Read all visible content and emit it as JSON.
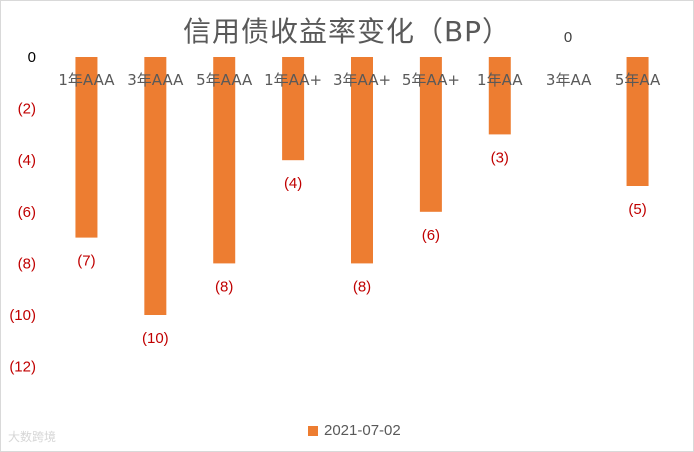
{
  "watermark": "大数跨境",
  "chart_data": {
    "type": "bar",
    "title": "信用债收益率变化（BP）",
    "categories": [
      "1年AAA",
      "3年AAA",
      "5年AAA",
      "1年AA+",
      "3年AA+",
      "5年AA+",
      "1年AA",
      "3年AA",
      "5年AA"
    ],
    "series": [
      {
        "name": "2021-07-02",
        "values": [
          -7,
          -10,
          -8,
          -4,
          -8,
          -6,
          -3,
          0,
          -5
        ],
        "data_labels": [
          "(7)",
          "(10)",
          "(8)",
          "(4)",
          "(8)",
          "(6)",
          "(3)",
          "0",
          "(5)"
        ]
      }
    ],
    "ylim": [
      -12,
      0
    ],
    "yticks": [
      0,
      -2,
      -4,
      -6,
      -8,
      -10,
      -12
    ],
    "ytick_labels": [
      "0",
      "(2)",
      "(4)",
      "(6)",
      "(8)",
      "(10)",
      "(12)"
    ],
    "xlabel": "",
    "ylabel": "",
    "grid": false,
    "legend": "bottom",
    "colors": {
      "bar": "#ed7d31",
      "tick_label_negative": "#c00000",
      "tick_label_zero": "#000000",
      "data_label": "#c00000",
      "axis_label": "#595959"
    }
  }
}
